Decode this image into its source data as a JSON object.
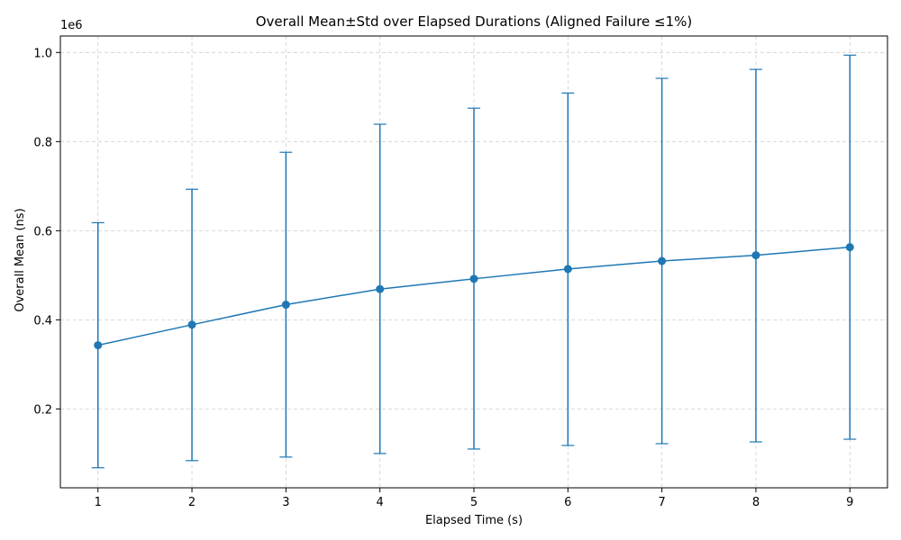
{
  "chart_data": {
    "type": "line",
    "title": "Overall Mean±Std over Elapsed Durations (Aligned Failure ≤1%)",
    "xlabel": "Elapsed Time (s)",
    "ylabel": "Overall Mean (ns)",
    "y_offset_label": "1e6",
    "x": [
      1,
      2,
      3,
      4,
      5,
      6,
      7,
      8,
      9
    ],
    "mean": [
      343000,
      389000,
      434000,
      469000,
      492000,
      514000,
      532000,
      545000,
      563000
    ],
    "std_upper": [
      618000,
      693000,
      776000,
      839000,
      875000,
      909000,
      942000,
      962000,
      994000
    ],
    "std_lower": [
      68000,
      84000,
      92000,
      100000,
      110000,
      118000,
      122000,
      126000,
      132000
    ],
    "xlim": [
      0.6,
      9.4
    ],
    "ylim": [
      23000,
      1037000
    ],
    "yticks": [
      200000,
      400000,
      600000,
      800000,
      1000000
    ],
    "ytick_labels": [
      "0.2",
      "0.4",
      "0.6",
      "0.8",
      "1.0"
    ],
    "xtick_labels": [
      "1",
      "2",
      "3",
      "4",
      "5",
      "6",
      "7",
      "8",
      "9"
    ],
    "grid": true,
    "color": "#1f77b4"
  }
}
